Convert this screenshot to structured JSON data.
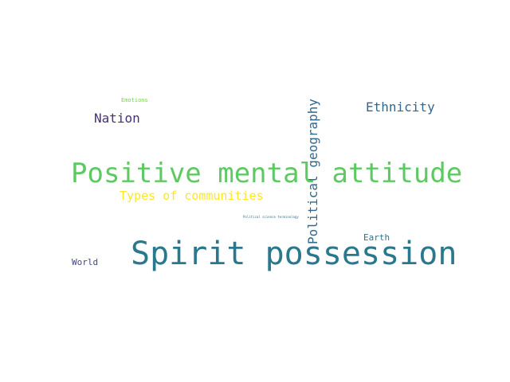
{
  "words": {
    "emotions": {
      "text": "Emotions",
      "color": "#7ad151"
    },
    "nation": {
      "text": "Nation",
      "color": "#472f7d"
    },
    "political_geography": {
      "text": "Political geography",
      "color": "#31688e"
    },
    "ethnicity": {
      "text": "Ethnicity",
      "color": "#31688e"
    },
    "positive_mental_attitude": {
      "text": "Positive mental attitude",
      "color": "#5ec962"
    },
    "types_of_communities": {
      "text": "Types of communities",
      "color": "#fde725"
    },
    "political_science_terminology": {
      "text": "Political science terminology",
      "color": "#2a788e"
    },
    "earth": {
      "text": "Earth",
      "color": "#2c728e"
    },
    "spirit_possession": {
      "text": "Spirit possession",
      "color": "#2a788e"
    },
    "world": {
      "text": "World",
      "color": "#414487"
    }
  }
}
